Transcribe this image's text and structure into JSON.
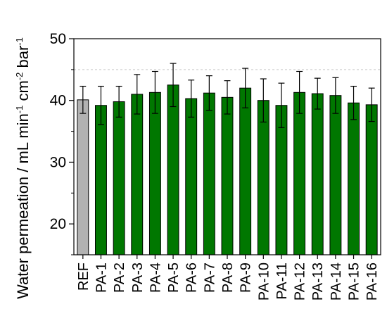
{
  "chart_data": {
    "type": "bar",
    "categories": [
      "REF",
      "PA-1",
      "PA-2",
      "PA-3",
      "PA-4",
      "PA-5",
      "PA-6",
      "PA-7",
      "PA-8",
      "PA-9",
      "PA-10",
      "PA-11",
      "PA-12",
      "PA-13",
      "PA-14",
      "PA-15",
      "PA-16"
    ],
    "values": [
      40.1,
      39.2,
      39.8,
      41.0,
      41.3,
      42.5,
      40.3,
      41.2,
      40.5,
      42.0,
      40.0,
      39.2,
      41.3,
      41.1,
      40.8,
      39.6,
      39.3
    ],
    "errors": [
      2.2,
      3.1,
      2.5,
      3.2,
      3.4,
      3.5,
      3.0,
      2.8,
      2.7,
      3.2,
      3.5,
      3.6,
      3.4,
      2.5,
      2.9,
      2.7,
      2.7
    ],
    "colors": [
      "#b2b2b2",
      "#007700",
      "#007700",
      "#007700",
      "#007700",
      "#007700",
      "#007700",
      "#007700",
      "#007700",
      "#007700",
      "#007700",
      "#007700",
      "#007700",
      "#007700",
      "#007700",
      "#007700",
      "#007700"
    ],
    "ylim": [
      15,
      50
    ],
    "yticks": [
      "20",
      "30",
      "40",
      "50"
    ],
    "ylabel": "Water permeation / mL min",
    "ylabel_sup1": "-1",
    "ylabel_mid": " cm",
    "ylabel_sup2": "-2",
    "ylabel_end": " bar",
    "ylabel_sup3": "-1",
    "reference_line": 45,
    "grid": "dashed horizontal"
  }
}
